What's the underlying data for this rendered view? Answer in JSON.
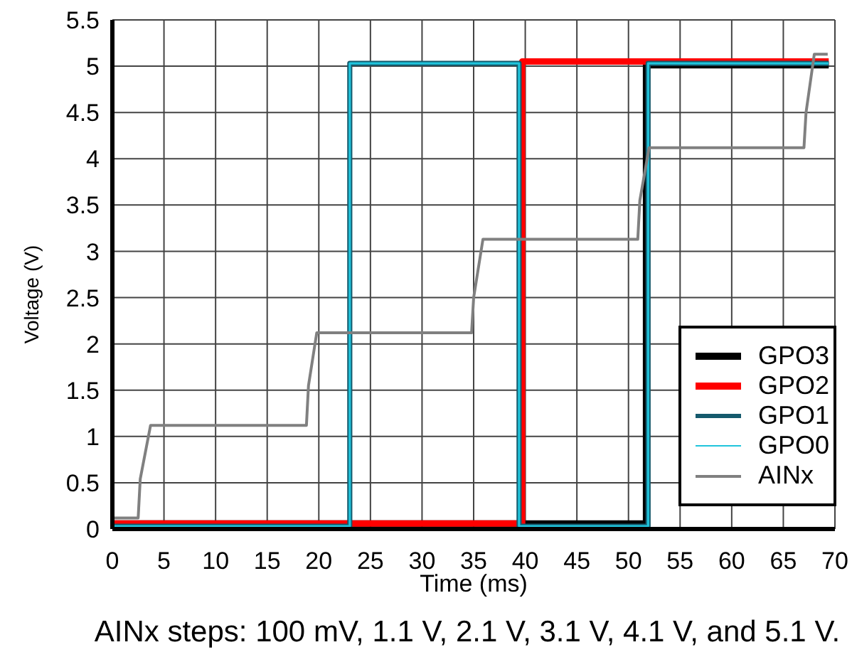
{
  "chart_data": {
    "type": "line",
    "xlabel": "Time (ms)",
    "ylabel": "Voltage (V)",
    "annotations": [
      "AINx steps: 100 mV, 1.1 V, 2.1 V, 3.1 V, 4.1 V, and 5.1 V."
    ],
    "xlim": [
      0,
      70
    ],
    "xticks": [
      0,
      5,
      10,
      15,
      20,
      25,
      30,
      35,
      40,
      45,
      50,
      55,
      60,
      65,
      70
    ],
    "ylim": [
      0,
      5.5
    ],
    "yticks": [
      0,
      0.5,
      1,
      1.5,
      2,
      2.5,
      3,
      3.5,
      4,
      4.5,
      5,
      5.5
    ],
    "grid": true,
    "legend": "bottom right",
    "series": [
      {
        "name": "GPO3",
        "color": "#000000",
        "x": [
          0,
          51.7,
          51.7,
          69.4
        ],
        "values": [
          0.06,
          0.06,
          5.01,
          5.01
        ]
      },
      {
        "name": "GPO2",
        "color": "#ff0000",
        "x": [
          0,
          39.7,
          39.7,
          69.4
        ],
        "values": [
          0.06,
          0.06,
          5.05,
          5.05
        ]
      },
      {
        "name": "GPO1",
        "color": "#155a6d",
        "x": [
          0,
          23.0,
          23.0,
          39.4,
          39.4,
          51.9,
          51.9,
          69.4
        ],
        "values": [
          0.03,
          0.03,
          5.03,
          5.03,
          0.03,
          0.03,
          5.03,
          5.03
        ]
      },
      {
        "name": "GPO0",
        "color": "#20c4dc",
        "x": [
          0,
          23.0,
          23.0,
          39.4,
          39.4,
          51.9,
          51.9,
          69.4
        ],
        "values": [
          0.03,
          0.03,
          5.03,
          5.03,
          0.03,
          0.03,
          5.03,
          5.03
        ]
      },
      {
        "name": "AINx",
        "color": "#808080",
        "x": [
          0,
          2.5,
          2.7,
          3.7,
          18.8,
          19.0,
          19.8,
          34.8,
          35.0,
          35.9,
          50.9,
          51.1,
          52.0,
          67.0,
          67.2,
          68.0,
          69.3
        ],
        "values": [
          0.12,
          0.12,
          0.54,
          1.12,
          1.12,
          1.55,
          2.12,
          2.12,
          2.5,
          3.13,
          3.13,
          3.55,
          4.12,
          4.12,
          4.5,
          5.13,
          5.13
        ]
      }
    ]
  }
}
